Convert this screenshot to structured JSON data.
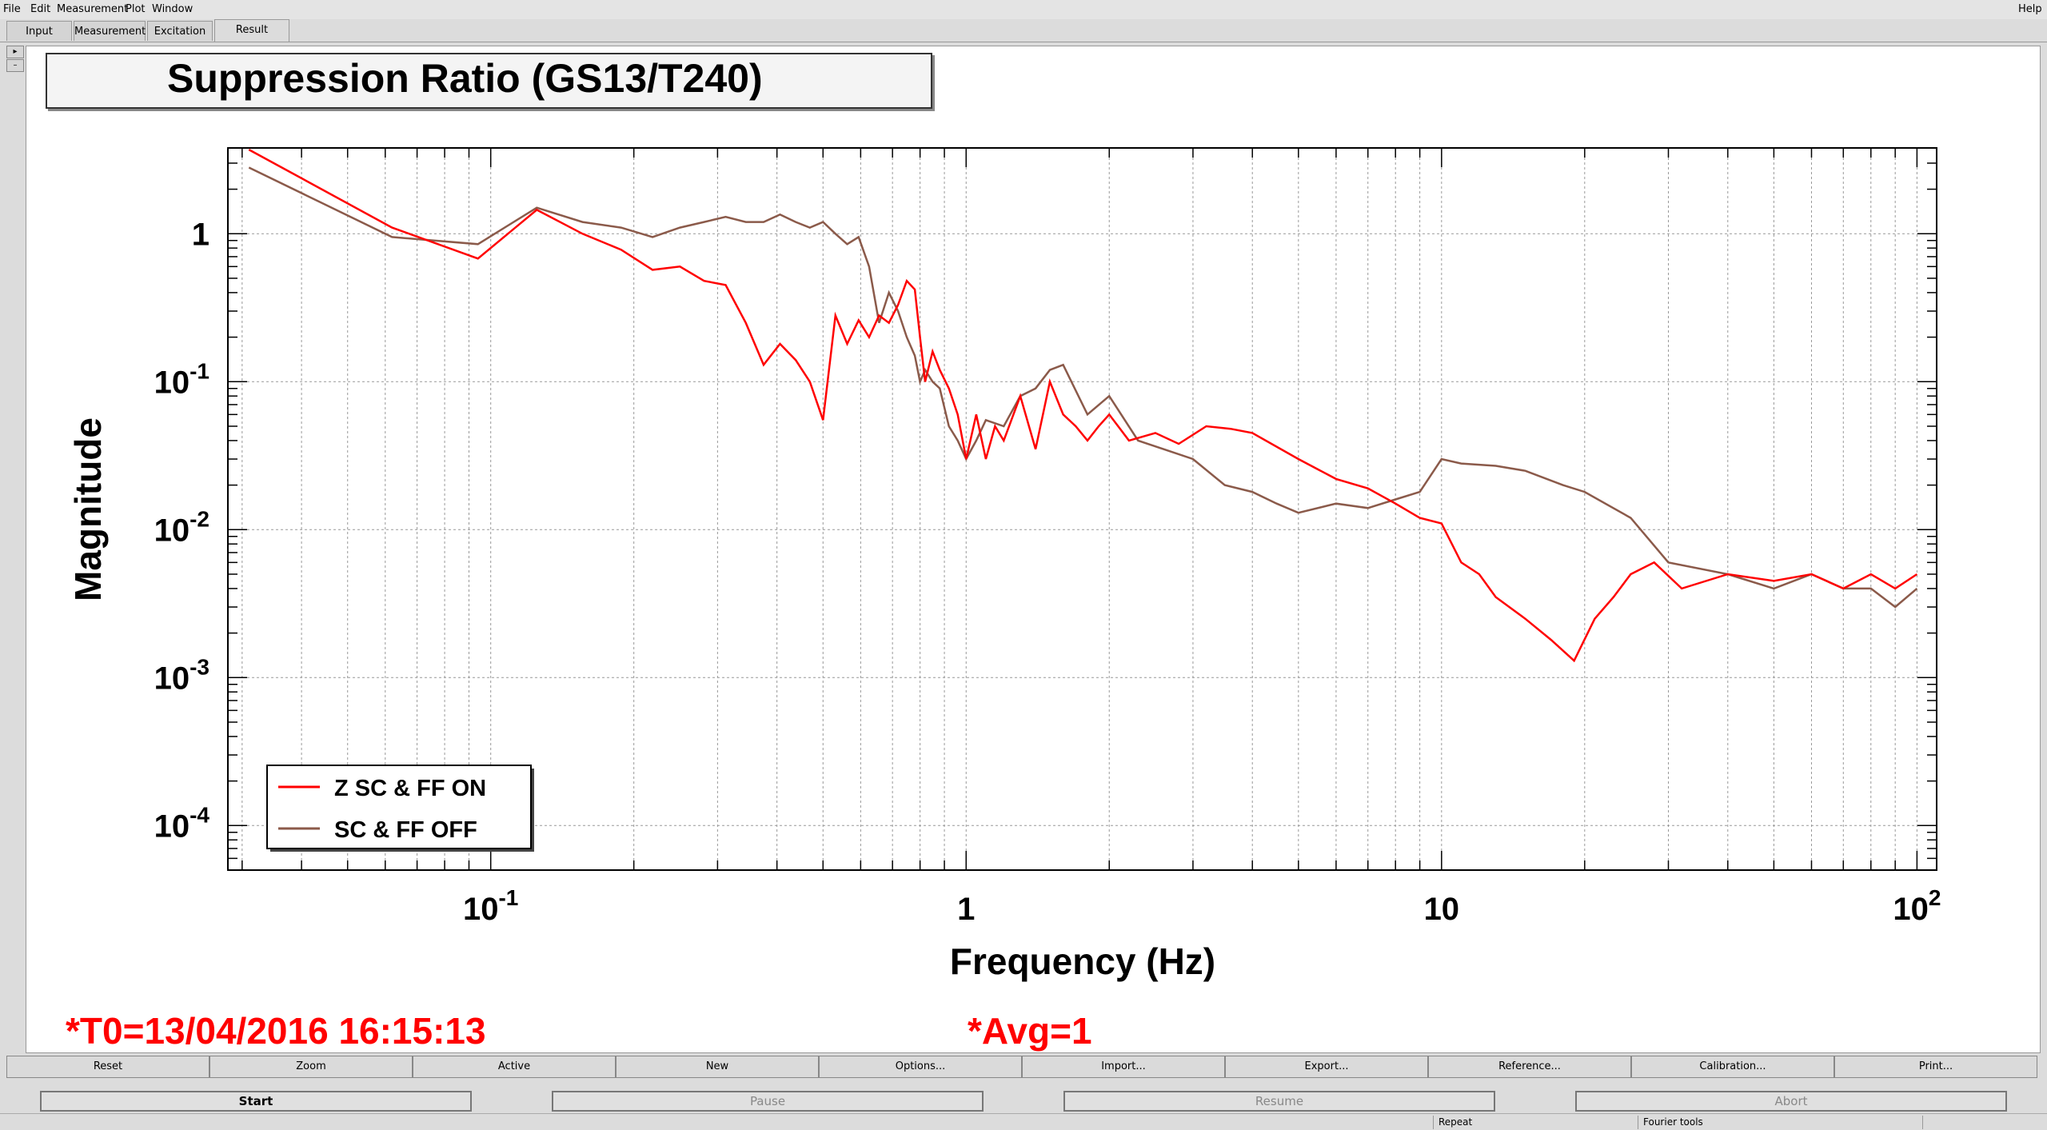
{
  "menu": {
    "items": [
      "File",
      "Edit",
      "Measurement",
      "Plot",
      "Window"
    ],
    "help": "Help"
  },
  "tabs": [
    {
      "label": "Input"
    },
    {
      "label": "Measurement"
    },
    {
      "label": "Excitation"
    },
    {
      "label": "Result",
      "active": true
    }
  ],
  "plot": {
    "title": "Suppression Ratio (GS13/T240)",
    "info_t0": "*T0=13/04/2016 16:15:13",
    "info_avg": "*Avg=1"
  },
  "chart_data": {
    "type": "line",
    "title": "Suppression Ratio (GS13/T240)",
    "xlabel": "Frequency (Hz)",
    "ylabel": "Magnitude",
    "xscale": "log",
    "yscale": "log",
    "xlim": [
      0.028,
      110
    ],
    "ylim": [
      5e-05,
      3.8
    ],
    "x_tick_labels": [
      "10-1",
      "1",
      "10",
      "102"
    ],
    "y_tick_labels": [
      "1",
      "10-1",
      "10-2",
      "10-3",
      "10-4"
    ],
    "grid": true,
    "legend_position": "bottom-left",
    "series": [
      {
        "name": "Z SC & FF ON",
        "color": "#ff0000",
        "x": [
          0.031,
          0.062,
          0.094,
          0.125,
          0.156,
          0.188,
          0.219,
          0.25,
          0.281,
          0.312,
          0.344,
          0.375,
          0.406,
          0.438,
          0.469,
          0.5,
          0.531,
          0.562,
          0.594,
          0.625,
          0.656,
          0.688,
          0.719,
          0.75,
          0.78,
          0.8,
          0.82,
          0.85,
          0.88,
          0.92,
          0.96,
          1.0,
          1.05,
          1.1,
          1.15,
          1.2,
          1.3,
          1.4,
          1.5,
          1.6,
          1.7,
          1.8,
          1.9,
          2.0,
          2.2,
          2.5,
          2.8,
          3.2,
          3.6,
          4.0,
          5.0,
          6.0,
          7.0,
          8.0,
          9.0,
          10.0,
          11.0,
          12.0,
          13.0,
          15.0,
          17.0,
          19.0,
          21.0,
          23.0,
          25.0,
          28.0,
          32.0,
          40.0,
          50.0,
          60.0,
          70.0,
          80.0,
          90.0,
          100.0
        ],
        "y": [
          3.7,
          1.1,
          0.68,
          1.45,
          1.0,
          0.78,
          0.57,
          0.6,
          0.48,
          0.45,
          0.25,
          0.13,
          0.18,
          0.14,
          0.1,
          0.055,
          0.28,
          0.18,
          0.26,
          0.2,
          0.28,
          0.25,
          0.33,
          0.48,
          0.42,
          0.2,
          0.1,
          0.16,
          0.12,
          0.09,
          0.06,
          0.03,
          0.06,
          0.03,
          0.05,
          0.04,
          0.08,
          0.035,
          0.1,
          0.06,
          0.05,
          0.04,
          0.05,
          0.06,
          0.04,
          0.045,
          0.038,
          0.05,
          0.048,
          0.045,
          0.03,
          0.022,
          0.019,
          0.015,
          0.012,
          0.011,
          0.006,
          0.005,
          0.0035,
          0.0025,
          0.0018,
          0.0013,
          0.0025,
          0.0035,
          0.005,
          0.006,
          0.004,
          0.005,
          0.0045,
          0.005,
          0.004,
          0.005,
          0.004,
          0.005
        ]
      },
      {
        "name": "SC & FF OFF",
        "color": "#8b5a4a",
        "x": [
          0.031,
          0.062,
          0.094,
          0.125,
          0.156,
          0.188,
          0.219,
          0.25,
          0.281,
          0.312,
          0.344,
          0.375,
          0.406,
          0.438,
          0.469,
          0.5,
          0.531,
          0.562,
          0.594,
          0.625,
          0.656,
          0.688,
          0.719,
          0.75,
          0.78,
          0.8,
          0.82,
          0.85,
          0.88,
          0.92,
          0.96,
          1.0,
          1.05,
          1.1,
          1.2,
          1.3,
          1.4,
          1.5,
          1.6,
          1.8,
          2.0,
          2.3,
          2.6,
          3.0,
          3.5,
          4.0,
          4.5,
          5.0,
          6.0,
          7.0,
          8.0,
          9.0,
          10.0,
          11.0,
          13.0,
          15.0,
          18.0,
          20.0,
          25.0,
          30.0,
          40.0,
          50.0,
          60.0,
          70.0,
          80.0,
          90.0,
          100.0
        ],
        "y": [
          2.8,
          0.95,
          0.85,
          1.5,
          1.2,
          1.1,
          0.95,
          1.1,
          1.2,
          1.3,
          1.2,
          1.2,
          1.35,
          1.2,
          1.1,
          1.2,
          1.0,
          0.85,
          0.95,
          0.6,
          0.25,
          0.4,
          0.3,
          0.2,
          0.15,
          0.1,
          0.12,
          0.1,
          0.09,
          0.05,
          0.04,
          0.03,
          0.04,
          0.055,
          0.05,
          0.08,
          0.09,
          0.12,
          0.13,
          0.06,
          0.08,
          0.04,
          0.035,
          0.03,
          0.02,
          0.018,
          0.015,
          0.013,
          0.015,
          0.014,
          0.016,
          0.018,
          0.03,
          0.028,
          0.027,
          0.025,
          0.02,
          0.018,
          0.012,
          0.006,
          0.005,
          0.004,
          0.005,
          0.004,
          0.004,
          0.003,
          0.004
        ]
      }
    ]
  },
  "toolbar1": [
    "Reset",
    "Zoom",
    "Active",
    "New",
    "Options...",
    "Import...",
    "Export...",
    "Reference...",
    "Calibration...",
    "Print..."
  ],
  "toolbar2": [
    {
      "label": "Start",
      "enabled": true
    },
    {
      "label": "Pause",
      "enabled": false
    },
    {
      "label": "Resume",
      "enabled": false
    },
    {
      "label": "Abort",
      "enabled": false
    }
  ],
  "status": {
    "seg1": "Repeat",
    "seg2": "Fourier tools"
  }
}
